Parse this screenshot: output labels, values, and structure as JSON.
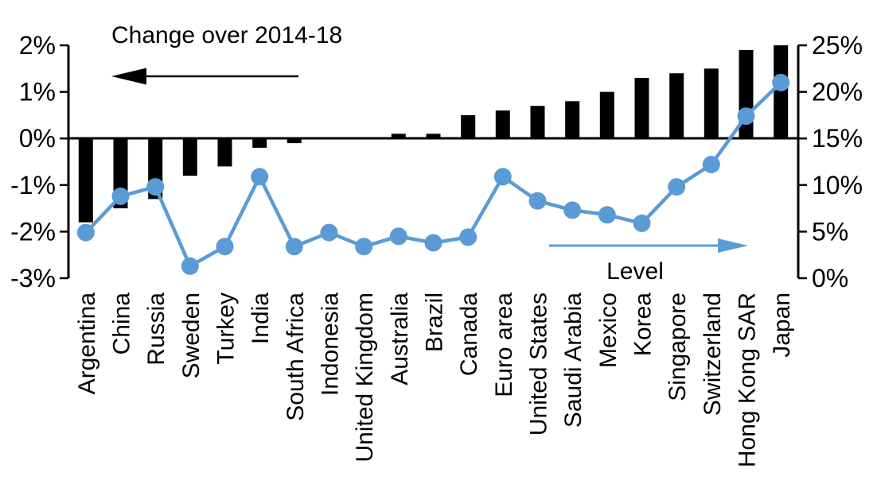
{
  "chart_data": {
    "type": "bar+line",
    "title": "Change over 2014-18",
    "line_label": "Level",
    "legend_position": "annotations-with-arrows",
    "grid": false,
    "categories": [
      "Argentina",
      "China",
      "Russia",
      "Sweden",
      "Turkey",
      "India",
      "South Africa",
      "Indonesia",
      "United Kingdom",
      "Australia",
      "Brazil",
      "Canada",
      "Euro area",
      "United States",
      "Saudi Arabia",
      "Mexico",
      "Korea",
      "Singapore",
      "Switzerland",
      "Hong Kong SAR",
      "Japan"
    ],
    "series": [
      {
        "name": "Change over 2014-18",
        "type": "bar",
        "axis": "left",
        "unit": "%",
        "color": "#000000",
        "values": [
          -1.8,
          -1.5,
          -1.3,
          -0.8,
          -0.6,
          -0.2,
          -0.1,
          0,
          0,
          0.1,
          0.1,
          0.5,
          0.6,
          0.7,
          0.8,
          1.0,
          1.3,
          1.4,
          1.5,
          1.9,
          2.0
        ]
      },
      {
        "name": "Level",
        "type": "line",
        "axis": "right",
        "unit": "%",
        "color": "#5B9BD5",
        "values": [
          4.9,
          8.8,
          9.8,
          1.3,
          3.4,
          10.9,
          3.4,
          4.9,
          3.4,
          4.5,
          3.8,
          4.4,
          10.9,
          8.3,
          7.3,
          6.8,
          5.9,
          9.8,
          12.2,
          17.4,
          21.0
        ]
      }
    ],
    "left_axis": {
      "ticks": [
        "2%",
        "1%",
        "0%",
        "-1%",
        "-2%",
        "-3%"
      ],
      "values": [
        2,
        1,
        0,
        -1,
        -2,
        -3
      ],
      "range": [
        -3,
        2
      ]
    },
    "right_axis": {
      "ticks": [
        "25%",
        "20%",
        "15%",
        "10%",
        "5%",
        "0%"
      ],
      "values": [
        25,
        20,
        15,
        10,
        5,
        0
      ],
      "range": [
        0,
        25
      ]
    },
    "colors": {
      "bar": "#000000",
      "line": "#5B9BD5",
      "axis": "#000000"
    }
  }
}
